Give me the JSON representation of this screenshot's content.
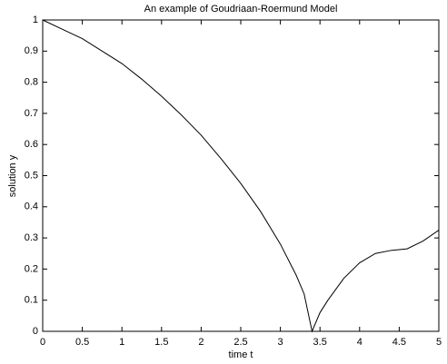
{
  "chart_data": {
    "type": "line",
    "title": "An example of Goudriaan-Roermund Model",
    "x_label": "time t",
    "y_label": "solution y",
    "x": [
      0,
      0.25,
      0.5,
      0.75,
      1,
      1.25,
      1.5,
      1.75,
      2,
      2.25,
      2.5,
      2.75,
      3,
      3.2,
      3.3,
      3.4,
      3.5,
      3.6,
      3.8,
      4,
      4.2,
      4.4,
      4.6,
      4.8,
      5
    ],
    "series": [
      {
        "color": "#000000",
        "values": [
          1,
          0.97,
          0.94,
          0.9,
          0.86,
          0.81,
          0.755,
          0.695,
          0.63,
          0.555,
          0.475,
          0.385,
          0.28,
          0.18,
          0.12,
          0,
          0.06,
          0.1,
          0.17,
          0.22,
          0.25,
          0.26,
          0.265,
          0.29,
          0.325
        ]
      }
    ],
    "xlim": [
      0,
      5
    ],
    "xticks": [
      0,
      0.5,
      1,
      1.5,
      2,
      2.5,
      3,
      3.5,
      4,
      4.5,
      5
    ],
    "ylim": [
      0,
      1
    ],
    "yticks": [
      0,
      0.1,
      0.2,
      0.3,
      0.4,
      0.5,
      0.6,
      0.7,
      0.8,
      0.9,
      1
    ]
  }
}
